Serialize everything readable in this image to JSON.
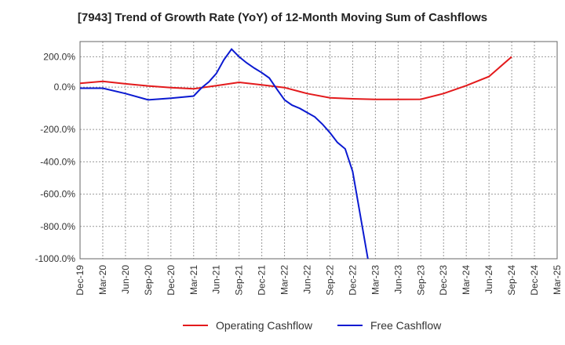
{
  "chart_data": {
    "type": "line",
    "title": "[7943]  Trend of Growth Rate (YoY) of 12-Month Moving Sum of Cashflows",
    "xlabel": "",
    "ylabel": "",
    "x_tick_labels": [
      "Dec-19",
      "Mar-20",
      "Jun-20",
      "Sep-20",
      "Dec-20",
      "Mar-21",
      "Jun-21",
      "Sep-21",
      "Dec-21",
      "Mar-22",
      "Jun-22",
      "Sep-22",
      "Dec-22",
      "Mar-23",
      "Jun-23",
      "Sep-23",
      "Dec-23",
      "Mar-24",
      "Jun-24",
      "Sep-24",
      "Dec-24",
      "Mar-25"
    ],
    "y_ticks": [
      200,
      0,
      -200,
      -400,
      -600,
      -800,
      -1000
    ],
    "y_tick_labels": [
      "200.0%",
      "0.0%",
      "-200.0%",
      "-400.0%",
      "-600.0%",
      "-800.0%",
      "-1000.0%"
    ],
    "segments": [
      {
        "from": 300,
        "to": 0,
        "frac": 0.21
      },
      {
        "from": 0,
        "to": -200,
        "frac": 0.195
      },
      {
        "from": -200,
        "to": -1000,
        "frac": 0.595
      }
    ],
    "ylim": [
      -1000,
      300
    ],
    "grid": true,
    "legend_position": "bottom",
    "series": [
      {
        "name": "Operating Cashflow",
        "color": "#e31a1c",
        "points": [
          [
            0,
            25
          ],
          [
            1,
            38
          ],
          [
            2,
            22
          ],
          [
            3,
            8
          ],
          [
            4,
            -2
          ],
          [
            5,
            -8
          ],
          [
            6,
            10
          ],
          [
            7,
            32
          ],
          [
            8,
            15
          ],
          [
            9,
            -2
          ],
          [
            10,
            -30
          ],
          [
            11,
            -50
          ],
          [
            12,
            -55
          ],
          [
            13,
            -58
          ],
          [
            14,
            -58
          ],
          [
            15,
            -57
          ],
          [
            16,
            -30
          ],
          [
            17,
            10
          ],
          [
            18,
            70
          ],
          [
            19,
            200
          ]
        ]
      },
      {
        "name": "Free Cashflow",
        "color": "#0b1ad1",
        "points": [
          [
            0,
            -5
          ],
          [
            1,
            -5
          ],
          [
            2,
            -30
          ],
          [
            3,
            -60
          ],
          [
            4,
            -52
          ],
          [
            5,
            -42
          ],
          [
            5.33,
            -5
          ],
          [
            5.67,
            35
          ],
          [
            6,
            90
          ],
          [
            6.33,
            180
          ],
          [
            6.67,
            250
          ],
          [
            7,
            200
          ],
          [
            7.33,
            160
          ],
          [
            7.67,
            125
          ],
          [
            8,
            95
          ],
          [
            8.33,
            60
          ],
          [
            8.67,
            -10
          ],
          [
            9,
            -60
          ],
          [
            9.33,
            -85
          ],
          [
            9.67,
            -100
          ],
          [
            10,
            -120
          ],
          [
            10.33,
            -140
          ],
          [
            10.67,
            -175
          ],
          [
            11,
            -220
          ],
          [
            11.33,
            -280
          ],
          [
            11.67,
            -320
          ],
          [
            12,
            -460
          ],
          [
            12.67,
            -1000
          ]
        ]
      }
    ]
  }
}
